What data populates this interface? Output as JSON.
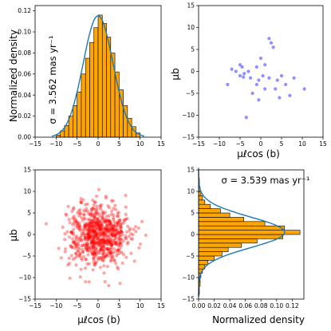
{
  "chart_data": [
    {
      "type": "bar",
      "panel": "top-left",
      "orientation": "vertical",
      "ylabel": "Normalized density",
      "annotation": "σ = 3.562 mas yr⁻¹",
      "xlim": [
        -15,
        15
      ],
      "ylim": [
        0,
        0.125
      ],
      "xticks": [
        "−15",
        "−10",
        "−5",
        "0",
        "5",
        "10",
        "15"
      ],
      "yticks": [
        "0.00",
        "0.02",
        "0.04",
        "0.06",
        "0.08",
        "0.10",
        "0.12"
      ],
      "bar_color": "#FFA500",
      "curve_color": "#1f77b4",
      "bins": [
        -10,
        -9,
        -8,
        -7,
        -6,
        -5,
        -4,
        -3,
        -2,
        -1,
        0,
        1,
        2,
        3,
        4,
        5,
        6,
        7,
        8,
        9
      ],
      "bin_width": 1,
      "values": [
        0.002,
        0.006,
        0.011,
        0.02,
        0.03,
        0.043,
        0.06,
        0.075,
        0.09,
        0.104,
        0.116,
        0.108,
        0.095,
        0.08,
        0.062,
        0.045,
        0.03,
        0.018,
        0.01,
        0.004
      ],
      "sigma": 3.562
    },
    {
      "type": "scatter",
      "panel": "top-right",
      "xlabel": "μℓcos (b)",
      "ylabel": "μb",
      "xlim": [
        -15,
        15
      ],
      "ylim": [
        -15,
        15
      ],
      "xticks": [
        "−15",
        "−10",
        "−5",
        "0",
        "5",
        "10",
        "15"
      ],
      "yticks": [
        "−15",
        "−10",
        "−5",
        "0",
        "5",
        "10",
        "15"
      ],
      "point_color": "#6b6bff",
      "points": [
        [
          -8,
          -3
        ],
        [
          -6,
          0
        ],
        [
          -5,
          1.5
        ],
        [
          -4.5,
          1
        ],
        [
          -4,
          -0.5
        ],
        [
          -5,
          -1
        ],
        [
          -4.2,
          -1.3
        ],
        [
          -3,
          0
        ],
        [
          -2.5,
          -1.5
        ],
        [
          -2,
          -5
        ],
        [
          -1,
          -3
        ],
        [
          -1,
          1
        ],
        [
          -0.5,
          -2
        ],
        [
          0,
          3
        ],
        [
          0.5,
          -1
        ],
        [
          1,
          1.5
        ],
        [
          1,
          -4
        ],
        [
          2,
          -1.5
        ],
        [
          2,
          7.5
        ],
        [
          2.5,
          6.5
        ],
        [
          3,
          5.5
        ],
        [
          3.5,
          -4
        ],
        [
          4,
          -2
        ],
        [
          4.5,
          -6
        ],
        [
          5,
          -1
        ],
        [
          6,
          -3
        ],
        [
          7,
          -5.5
        ],
        [
          8,
          -1.5
        ],
        [
          10.5,
          -4
        ],
        [
          -3.5,
          -10.5
        ],
        [
          -0.5,
          -6.5
        ],
        [
          -7,
          0.5
        ]
      ]
    },
    {
      "type": "scatter",
      "panel": "bottom-left",
      "xlabel": "μℓcos (b)",
      "ylabel": "μb",
      "xlim": [
        -15,
        15
      ],
      "ylim": [
        -15,
        15
      ],
      "xticks": [
        "−15",
        "−10",
        "−5",
        "0",
        "5",
        "10",
        "15"
      ],
      "yticks": [
        "−15",
        "−10",
        "−5",
        "0",
        "5",
        "10",
        "15"
      ],
      "point_color": "#ff0000",
      "distribution": {
        "center": [
          0,
          0
        ],
        "sigma": 3.55,
        "count": 750
      }
    },
    {
      "type": "bar",
      "panel": "bottom-right",
      "orientation": "horizontal",
      "xlabel": "Normalized density",
      "annotation": "σ = 3.539 mas yr⁻¹",
      "xlim": [
        0,
        0.135
      ],
      "ylim": [
        -15,
        15
      ],
      "xticks": [
        "0.00",
        "0.02",
        "0.04",
        "0.06",
        "0.08",
        "0.10",
        "0.12"
      ],
      "yticks": [
        "−15",
        "−10",
        "−5",
        "0",
        "5",
        "10",
        "15"
      ],
      "bar_color": "#FFA500",
      "curve_color": "#1f77b4",
      "bins": [
        -14,
        -13,
        -12,
        -11,
        -10,
        -9,
        -8,
        -7,
        -6,
        -5,
        -4,
        -3,
        -2,
        -1,
        0,
        1,
        2,
        3,
        4,
        5,
        6,
        7,
        8,
        9,
        10,
        11,
        12
      ],
      "bin_width": 1,
      "values": [
        0.001,
        0.001,
        0.002,
        0.002,
        0.003,
        0.005,
        0.008,
        0.012,
        0.02,
        0.03,
        0.038,
        0.055,
        0.075,
        0.108,
        0.13,
        0.11,
        0.085,
        0.058,
        0.04,
        0.028,
        0.015,
        0.008,
        0.005,
        0.003,
        0.002,
        0.001,
        0.001
      ],
      "sigma": 3.539
    }
  ]
}
